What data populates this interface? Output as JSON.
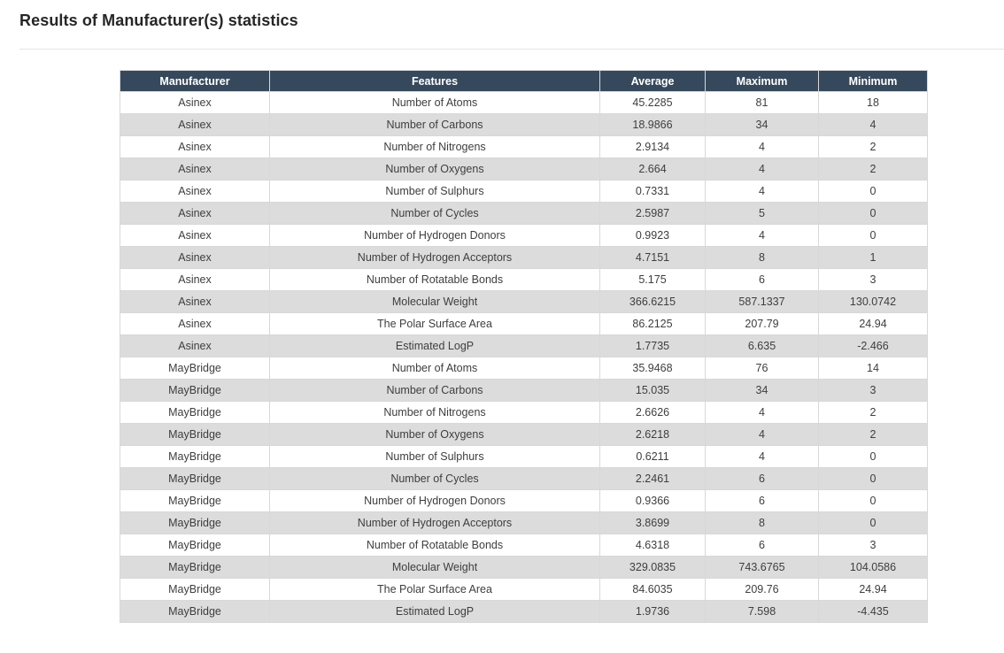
{
  "page": {
    "title": "Results of Manufacturer(s) statistics"
  },
  "colors": {
    "header_bg": "#36495c",
    "header_text": "#ffffff",
    "stripe_bg": "#dcdcdc",
    "body_text": "#3e3e3e",
    "cell_border": "#d8d8d8",
    "divider": "#e4e4e4",
    "title_text": "#262626"
  },
  "table": {
    "column_keys": [
      "manufacturer",
      "features",
      "average",
      "maximum",
      "minimum"
    ],
    "columns": [
      "Manufacturer",
      "Features",
      "Average",
      "Maximum",
      "Minimum"
    ],
    "rows": [
      [
        "Asinex",
        "Number of Atoms",
        "45.2285",
        "81",
        "18"
      ],
      [
        "Asinex",
        "Number of Carbons",
        "18.9866",
        "34",
        "4"
      ],
      [
        "Asinex",
        "Number of Nitrogens",
        "2.9134",
        "4",
        "2"
      ],
      [
        "Asinex",
        "Number of Oxygens",
        "2.664",
        "4",
        "2"
      ],
      [
        "Asinex",
        "Number of Sulphurs",
        "0.7331",
        "4",
        "0"
      ],
      [
        "Asinex",
        "Number of Cycles",
        "2.5987",
        "5",
        "0"
      ],
      [
        "Asinex",
        "Number of Hydrogen Donors",
        "0.9923",
        "4",
        "0"
      ],
      [
        "Asinex",
        "Number of Hydrogen Acceptors",
        "4.7151",
        "8",
        "1"
      ],
      [
        "Asinex",
        "Number of Rotatable Bonds",
        "5.175",
        "6",
        "3"
      ],
      [
        "Asinex",
        "Molecular Weight",
        "366.6215",
        "587.1337",
        "130.0742"
      ],
      [
        "Asinex",
        "The Polar Surface Area",
        "86.2125",
        "207.79",
        "24.94"
      ],
      [
        "Asinex",
        "Estimated LogP",
        "1.7735",
        "6.635",
        "-2.466"
      ],
      [
        "MayBridge",
        "Number of Atoms",
        "35.9468",
        "76",
        "14"
      ],
      [
        "MayBridge",
        "Number of Carbons",
        "15.035",
        "34",
        "3"
      ],
      [
        "MayBridge",
        "Number of Nitrogens",
        "2.6626",
        "4",
        "2"
      ],
      [
        "MayBridge",
        "Number of Oxygens",
        "2.6218",
        "4",
        "2"
      ],
      [
        "MayBridge",
        "Number of Sulphurs",
        "0.6211",
        "4",
        "0"
      ],
      [
        "MayBridge",
        "Number of Cycles",
        "2.2461",
        "6",
        "0"
      ],
      [
        "MayBridge",
        "Number of Hydrogen Donors",
        "0.9366",
        "6",
        "0"
      ],
      [
        "MayBridge",
        "Number of Hydrogen Acceptors",
        "3.8699",
        "8",
        "0"
      ],
      [
        "MayBridge",
        "Number of Rotatable Bonds",
        "4.6318",
        "6",
        "3"
      ],
      [
        "MayBridge",
        "Molecular Weight",
        "329.0835",
        "743.6765",
        "104.0586"
      ],
      [
        "MayBridge",
        "The Polar Surface Area",
        "84.6035",
        "209.76",
        "24.94"
      ],
      [
        "MayBridge",
        "Estimated LogP",
        "1.9736",
        "7.598",
        "-4.435"
      ]
    ]
  }
}
